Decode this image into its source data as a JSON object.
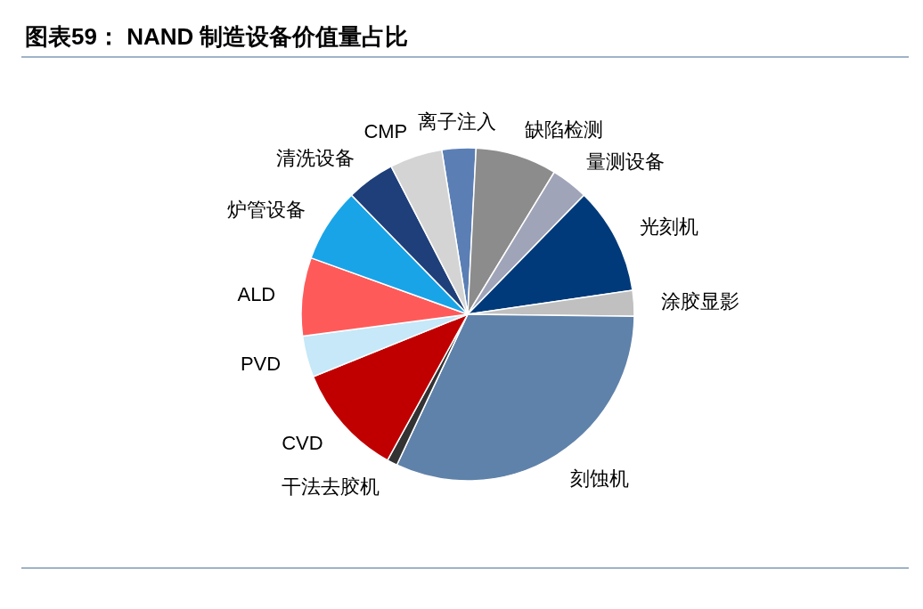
{
  "chart_data": {
    "type": "pie",
    "title": "图表59： NAND 制造设备价值量占比",
    "categories": [
      "离子注入",
      "缺陷检测",
      "量测设备",
      "光刻机",
      "涂胶显影",
      "刻蚀机",
      "干法去胶机",
      "CVD",
      "PVD",
      "ALD",
      "炉管设备",
      "清洗设备",
      "CMP"
    ],
    "values": [
      3.3,
      7.9,
      3.6,
      10.4,
      2.5,
      31.8,
      1,
      10.9,
      4,
      7.6,
      7.2,
      4.7,
      5.1
    ],
    "colors": [
      "#5b7fb5",
      "#8c8c8c",
      "#a0a4b8",
      "#003a7a",
      "#c0c0c0",
      "#5f82aa",
      "#333333",
      "#c00000",
      "#c6e8f8",
      "#ff5a5a",
      "#19a4e8",
      "#1f3f7a",
      "#d4d4d4"
    ]
  }
}
